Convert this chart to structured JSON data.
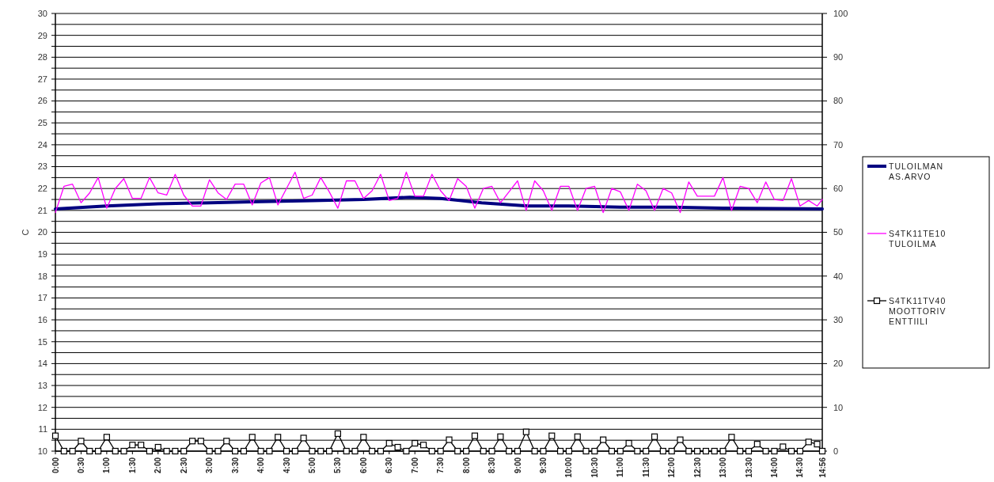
{
  "chart_data": {
    "type": "line",
    "ylabel": "C",
    "x": [
      0,
      0.167,
      0.333,
      0.5,
      0.667,
      0.833,
      1,
      1.167,
      1.333,
      1.5,
      1.667,
      1.833,
      2,
      2.167,
      2.333,
      2.5,
      2.667,
      2.833,
      3,
      3.167,
      3.333,
      3.5,
      3.667,
      3.833,
      4,
      4.167,
      4.333,
      4.5,
      4.667,
      4.833,
      5,
      5.167,
      5.333,
      5.5,
      5.667,
      5.833,
      6,
      6.167,
      6.333,
      6.5,
      6.667,
      6.833,
      7,
      7.167,
      7.333,
      7.5,
      7.667,
      7.833,
      8,
      8.167,
      8.333,
      8.5,
      8.667,
      8.833,
      9,
      9.167,
      9.333,
      9.5,
      9.667,
      9.833,
      10,
      10.167,
      10.333,
      10.5,
      10.667,
      10.833,
      11,
      11.167,
      11.333,
      11.5,
      11.667,
      11.833,
      12,
      12.167,
      12.333,
      12.5,
      12.667,
      12.833,
      13,
      13.167,
      13.333,
      13.5,
      13.667,
      13.833,
      14,
      14.167,
      14.333,
      14.5,
      14.667,
      14.833,
      14.933
    ],
    "xlim": [
      0,
      14.933
    ],
    "xticks": [
      {
        "value": 0,
        "label": "0:00"
      },
      {
        "value": 0.5,
        "label": "0:30"
      },
      {
        "value": 1,
        "label": "1:00"
      },
      {
        "value": 1.5,
        "label": "1:30"
      },
      {
        "value": 2,
        "label": "2:00"
      },
      {
        "value": 2.5,
        "label": "2:30"
      },
      {
        "value": 3,
        "label": "3:00"
      },
      {
        "value": 3.5,
        "label": "3:30"
      },
      {
        "value": 4,
        "label": "4:00"
      },
      {
        "value": 4.5,
        "label": "4:30"
      },
      {
        "value": 5,
        "label": "5:00"
      },
      {
        "value": 5.5,
        "label": "5:30"
      },
      {
        "value": 6,
        "label": "6:00"
      },
      {
        "value": 6.5,
        "label": "6:30"
      },
      {
        "value": 7,
        "label": "7:00"
      },
      {
        "value": 7.5,
        "label": "7:30"
      },
      {
        "value": 8,
        "label": "8:00"
      },
      {
        "value": 8.5,
        "label": "8:30"
      },
      {
        "value": 9,
        "label": "9:00"
      },
      {
        "value": 9.5,
        "label": "9:30"
      },
      {
        "value": 10,
        "label": "10:00"
      },
      {
        "value": 10.5,
        "label": "10:30"
      },
      {
        "value": 11,
        "label": "11:00"
      },
      {
        "value": 11.5,
        "label": "11:30"
      },
      {
        "value": 12,
        "label": "12:00"
      },
      {
        "value": 12.5,
        "label": "12:30"
      },
      {
        "value": 13,
        "label": "13:00"
      },
      {
        "value": 13.5,
        "label": "13:30"
      },
      {
        "value": 14,
        "label": "14:00"
      },
      {
        "value": 14.5,
        "label": "14:30"
      },
      {
        "value": 14.933,
        "label": "14:56"
      }
    ],
    "ylim": [
      10,
      30
    ],
    "yticks": [
      10,
      {
        "value": 10.5,
        "label": null
      },
      11,
      {
        "value": 11.5,
        "label": null
      },
      12,
      {
        "value": 12.5,
        "label": null
      },
      13,
      {
        "value": 13.5,
        "label": null
      },
      14,
      {
        "value": 14.5,
        "label": null
      },
      15,
      {
        "value": 15.5,
        "label": null
      },
      16,
      {
        "value": 16.5,
        "label": null
      },
      17,
      {
        "value": 17.5,
        "label": null
      },
      18,
      {
        "value": 18.5,
        "label": null
      },
      19,
      {
        "value": 19.5,
        "label": null
      },
      20,
      {
        "value": 20.5,
        "label": null
      },
      21,
      {
        "value": 21.5,
        "label": null
      },
      22,
      {
        "value": 22.5,
        "label": null
      },
      23,
      {
        "value": 23.5,
        "label": null
      },
      24,
      {
        "value": 24.5,
        "label": null
      },
      25,
      {
        "value": 25.5,
        "label": null
      },
      26,
      {
        "value": 26.5,
        "label": null
      },
      27,
      {
        "value": 27.5,
        "label": null
      },
      28,
      {
        "value": 28.5,
        "label": null
      },
      29,
      {
        "value": 29.5,
        "label": null
      },
      30
    ],
    "y2lim": [
      0,
      100
    ],
    "y2ticks": [
      0,
      10,
      20,
      30,
      40,
      50,
      60,
      70,
      80,
      90,
      100
    ],
    "grid": "y",
    "legend": "right",
    "marker": "none",
    "line_style": "solid",
    "series": [
      {
        "name": "TULOILMAN AS.ARVO",
        "color": "#000080",
        "x": [
          0,
          1,
          2,
          3,
          4,
          5,
          6,
          6.9,
          7.5,
          8.3,
          9.2,
          10,
          11,
          12,
          13,
          14.933
        ],
        "values": [
          21.07,
          21.2,
          21.3,
          21.35,
          21.4,
          21.45,
          21.5,
          21.6,
          21.55,
          21.35,
          21.2,
          21.2,
          21.15,
          21.15,
          21.1,
          21.07
        ]
      },
      {
        "name": "S4TK11TE10 TULOILMA",
        "color": "#ff00ff",
        "values": [
          20.9,
          22.1,
          22.2,
          21.35,
          21.8,
          22.5,
          21.1,
          22.0,
          22.45,
          21.55,
          21.55,
          22.5,
          21.8,
          21.7,
          22.65,
          21.7,
          21.2,
          21.2,
          22.4,
          21.8,
          21.5,
          22.2,
          22.2,
          21.25,
          22.25,
          22.5,
          21.25,
          22.0,
          22.75,
          21.55,
          21.7,
          22.5,
          21.85,
          21.1,
          22.35,
          22.35,
          21.55,
          21.9,
          22.65,
          21.45,
          21.55,
          22.75,
          21.65,
          21.65,
          22.65,
          21.9,
          21.45,
          22.45,
          22.1,
          21.1,
          22.0,
          22.1,
          21.35,
          21.85,
          22.35,
          21.0,
          22.35,
          21.9,
          21.0,
          22.1,
          22.1,
          21.0,
          22.0,
          22.1,
          20.9,
          22.0,
          21.85,
          21.0,
          22.2,
          21.9,
          21.0,
          22.0,
          21.8,
          20.9,
          22.3,
          21.65,
          21.65,
          21.65,
          22.5,
          21.0,
          22.1,
          22.0,
          21.35,
          22.3,
          21.5,
          21.45,
          22.45,
          21.2,
          21.45,
          21.2,
          21.5
        ]
      },
      {
        "name": "S4TK11TV40 MOOTTORIVENTTIILI",
        "color": "#000000",
        "axis": "y2",
        "marker": "square",
        "values": [
          3.5,
          0,
          0,
          2.3,
          0,
          0,
          3.2,
          0,
          0,
          1.4,
          1.4,
          0,
          0.9,
          0,
          0,
          0,
          2.3,
          2.3,
          0,
          0,
          2.3,
          0,
          0,
          3.2,
          0,
          0,
          3.2,
          0,
          0,
          3.0,
          0,
          0,
          0,
          4.0,
          0,
          0,
          3.2,
          0,
          0,
          1.8,
          0.9,
          0,
          1.8,
          1.4,
          0,
          0,
          2.6,
          0,
          0,
          3.5,
          0,
          0,
          3.3,
          0,
          0,
          4.4,
          0,
          0,
          3.5,
          0,
          0,
          3.3,
          0,
          0,
          2.6,
          0,
          0,
          1.8,
          0,
          0,
          3.3,
          0,
          0,
          2.6,
          0,
          0,
          0,
          0,
          0,
          3.2,
          0,
          0,
          1.6,
          0,
          0,
          1.0,
          0,
          0,
          2.1,
          1.6,
          0
        ]
      }
    ]
  }
}
